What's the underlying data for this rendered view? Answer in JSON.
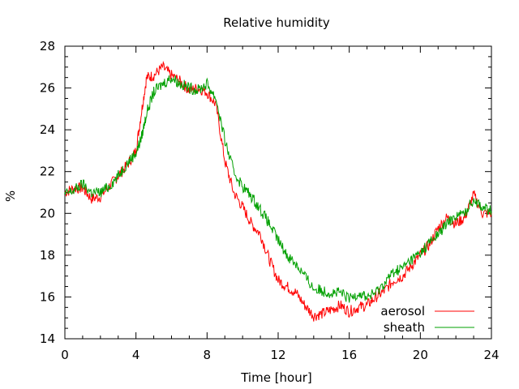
{
  "chart_data": {
    "type": "line",
    "title": "Relative humidity",
    "xlabel": "Time [hour]",
    "ylabel": "%",
    "xlim": [
      0,
      24
    ],
    "ylim": [
      14,
      28
    ],
    "xticks": [
      0,
      4,
      8,
      12,
      16,
      20,
      24
    ],
    "yticks": [
      14,
      16,
      18,
      20,
      22,
      24,
      26,
      28
    ],
    "xminor_step": 1,
    "yminor_step": 0.5,
    "grid": false,
    "legend_position": "bottom-right",
    "series": [
      {
        "name": "aerosol",
        "color": "#ff0000",
        "x": [
          0,
          0.5,
          1,
          1.5,
          2,
          2.5,
          3,
          3.5,
          4,
          4.3,
          4.6,
          5,
          5.5,
          6,
          6.5,
          7,
          7.5,
          8,
          8.5,
          9,
          9.5,
          10,
          10.5,
          11,
          11.5,
          12,
          12.5,
          13,
          13.5,
          14,
          14.5,
          15,
          15.5,
          16,
          16.5,
          17,
          17.5,
          18,
          18.5,
          19,
          19.5,
          20,
          20.5,
          21,
          21.5,
          22,
          22.5,
          23,
          23.5,
          24
        ],
        "y": [
          21.0,
          21.2,
          21.2,
          20.7,
          20.8,
          21.3,
          21.8,
          22.3,
          23.0,
          24.8,
          26.5,
          26.6,
          27.0,
          26.6,
          26.3,
          25.9,
          26.0,
          25.8,
          25.2,
          22.5,
          21.0,
          20.3,
          19.5,
          19.0,
          17.8,
          16.8,
          16.5,
          16.2,
          15.6,
          15.1,
          15.2,
          15.4,
          15.6,
          15.3,
          15.5,
          15.6,
          16.0,
          16.3,
          16.8,
          17.0,
          17.5,
          18.0,
          18.5,
          19.3,
          19.8,
          19.5,
          19.8,
          20.9,
          20.0,
          20.0
        ]
      },
      {
        "name": "sheath",
        "color": "#00a000",
        "x": [
          0,
          0.5,
          1,
          1.5,
          2,
          2.5,
          3,
          3.5,
          4,
          4.3,
          4.6,
          5,
          5.5,
          6,
          6.5,
          7,
          7.5,
          8,
          8.5,
          9,
          9.5,
          10,
          10.5,
          11,
          11.5,
          12,
          12.5,
          13,
          13.5,
          14,
          14.5,
          15,
          15.5,
          16,
          16.5,
          17,
          17.5,
          18,
          18.5,
          19,
          19.5,
          20,
          20.5,
          21,
          21.5,
          22,
          22.5,
          23,
          23.5,
          24
        ],
        "y": [
          20.9,
          21.1,
          21.4,
          21.0,
          21.0,
          21.3,
          21.8,
          22.4,
          22.9,
          23.6,
          24.8,
          25.8,
          26.2,
          26.5,
          26.2,
          26.0,
          25.9,
          26.2,
          25.5,
          23.5,
          22.0,
          21.3,
          20.8,
          20.2,
          19.5,
          18.7,
          18.0,
          17.6,
          17.0,
          16.4,
          16.3,
          16.2,
          16.2,
          15.9,
          16.2,
          16.0,
          16.2,
          16.7,
          17.2,
          17.4,
          17.8,
          18.1,
          18.6,
          19.0,
          19.5,
          19.9,
          20.0,
          20.7,
          20.3,
          20.1
        ]
      }
    ]
  }
}
